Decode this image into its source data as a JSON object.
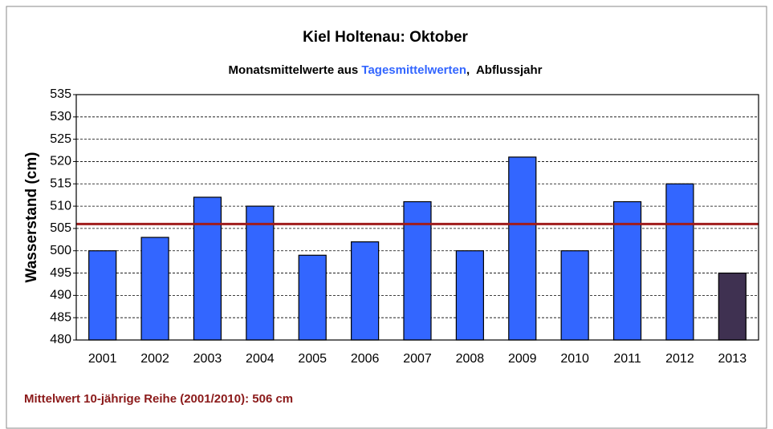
{
  "chart_data": {
    "type": "bar",
    "title": "Kiel Holtenau: Oktober",
    "subtitle_parts": [
      "Monatsmittelwerte aus ",
      "Tagesmittelwerten",
      ",  Abflussjahr"
    ],
    "subtitle_colors": [
      "#000000",
      "#3366ff",
      "#000000"
    ],
    "y_label": "Wasserstand (cm)",
    "categories": [
      "2001",
      "2002",
      "2003",
      "2004",
      "2005",
      "2006",
      "2007",
      "2008",
      "2009",
      "2010",
      "2011",
      "2012",
      "2013"
    ],
    "values": [
      500,
      503,
      512,
      510,
      499,
      502,
      511,
      500,
      521,
      500,
      511,
      515,
      495
    ],
    "colors": [
      "#3366ff",
      "#3366ff",
      "#3366ff",
      "#3366ff",
      "#3366ff",
      "#3366ff",
      "#3366ff",
      "#3366ff",
      "#3366ff",
      "#3366ff",
      "#3366ff",
      "#3366ff",
      "#3f3151"
    ],
    "ylim": [
      480,
      535
    ],
    "yticks": [
      480,
      485,
      490,
      495,
      500,
      505,
      510,
      515,
      520,
      525,
      530,
      535
    ],
    "grid": true,
    "reference_line": {
      "value": 506,
      "color": "#a01c1c"
    },
    "footnote": "Mittelwert 10-jährige Reihe (2001/2010): 506 cm"
  }
}
